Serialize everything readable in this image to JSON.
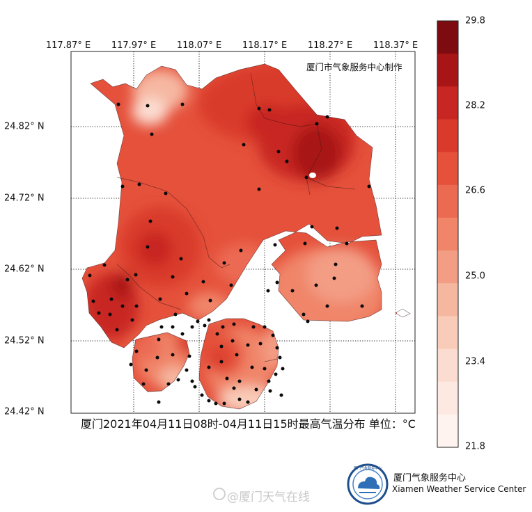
{
  "map": {
    "credit": "厦门市气象服务中心制作",
    "caption": "厦门2021年04月11日08时-04月11日15时最高气温分布 单位：°C",
    "lon_labels": [
      "117.87° E",
      "117.97° E",
      "118.07° E",
      "118.17° E",
      "118.27° E",
      "118.37° E"
    ],
    "lat_labels": [
      "24.82° N",
      "24.72° N",
      "24.62° N",
      "24.52° N",
      "24.42° N"
    ],
    "colorbar": {
      "ticks": [
        "29.8",
        "28.2",
        "26.6",
        "25.0",
        "23.4",
        "21.8"
      ],
      "min": 21.8,
      "max": 29.8,
      "levels": 13,
      "colors": [
        "#7d0b0f",
        "#a81517",
        "#c82622",
        "#d93a2c",
        "#e5513b",
        "#ec6a52",
        "#f08569",
        "#f39d85",
        "#f6b7a1",
        "#f9ccb9",
        "#fbdcd0",
        "#fde9e1",
        "#fef3ee"
      ]
    },
    "organization": {
      "name_zh": "厦门气象服务中心",
      "name_en": "Xiamen Weather Service Center",
      "logo_text": "厦门气象服务中心"
    },
    "watermark": "@厦门天气在线"
  }
}
